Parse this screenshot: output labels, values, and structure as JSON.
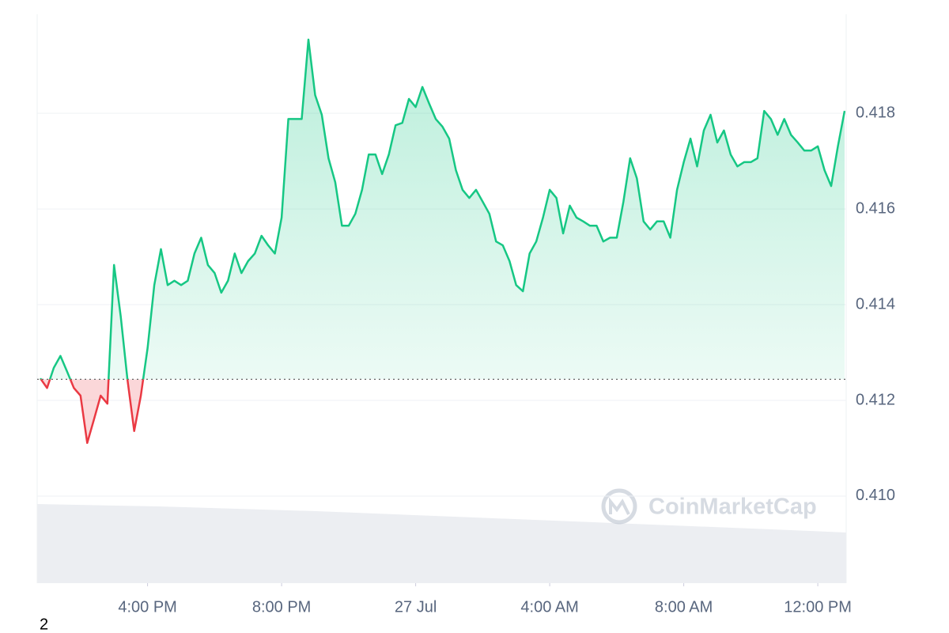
{
  "chart_data": {
    "type": "line",
    "values": [
      0.41246,
      0.41226,
      0.41268,
      0.41293,
      0.4126,
      0.41226,
      0.4121,
      0.41111,
      0.4116,
      0.4121,
      0.41193,
      0.41483,
      0.41375,
      0.41243,
      0.41136,
      0.4121,
      0.41309,
      0.41441,
      0.41516,
      0.41441,
      0.4145,
      0.41441,
      0.4145,
      0.41507,
      0.4154,
      0.41483,
      0.41466,
      0.41425,
      0.4145,
      0.41507,
      0.41466,
      0.41491,
      0.41507,
      0.41544,
      0.41524,
      0.41507,
      0.41582,
      0.41788,
      0.41788,
      0.41788,
      0.41954,
      0.41838,
      0.41797,
      0.41706,
      0.41656,
      0.41565,
      0.41565,
      0.4159,
      0.4164,
      0.41714,
      0.41714,
      0.41673,
      0.41714,
      0.41775,
      0.4178,
      0.4183,
      0.41813,
      0.41855,
      0.41821,
      0.41788,
      0.41772,
      0.41747,
      0.41681,
      0.4164,
      0.41623,
      0.4164,
      0.41615,
      0.4159,
      0.41532,
      0.41524,
      0.41491,
      0.41441,
      0.41428,
      0.41507,
      0.41532,
      0.41582,
      0.4164,
      0.41623,
      0.41549,
      0.41607,
      0.41582,
      0.41574,
      0.41565,
      0.41565,
      0.41532,
      0.4154,
      0.4154,
      0.41615,
      0.41706,
      0.41664,
      0.41574,
      0.41557,
      0.41574,
      0.41574,
      0.4154,
      0.4164,
      0.41698,
      0.41747,
      0.41689,
      0.41764,
      0.41797,
      0.41739,
      0.41764,
      0.41714,
      0.41689,
      0.41698,
      0.41698,
      0.41706,
      0.41805,
      0.41788,
      0.41755,
      0.41788,
      0.41755,
      0.41739,
      0.41722,
      0.41722,
      0.41731,
      0.41681,
      0.41648,
      0.41731,
      0.41805
    ],
    "baseline": 0.41244,
    "up_color": "#16c784",
    "down_color": "#ea3943",
    "xlim": [
      0,
      120
    ],
    "xticks": [
      {
        "value": 16,
        "label": "4:00 PM"
      },
      {
        "value": 36,
        "label": "8:00 PM"
      },
      {
        "value": 56,
        "label": "27 Jul"
      },
      {
        "value": 76,
        "label": "4:00 AM"
      },
      {
        "value": 96,
        "label": "8:00 AM"
      },
      {
        "value": 116,
        "label": "12:00 PM"
      }
    ],
    "ylim": [
      0.40818,
      0.42007
    ],
    "yticks": [
      {
        "value": 0.41,
        "label": "0.410"
      },
      0.412,
      0.414,
      0.416,
      0.418
    ],
    "grid": true,
    "watermark": "CoinMarketCap",
    "annotation": "2"
  }
}
